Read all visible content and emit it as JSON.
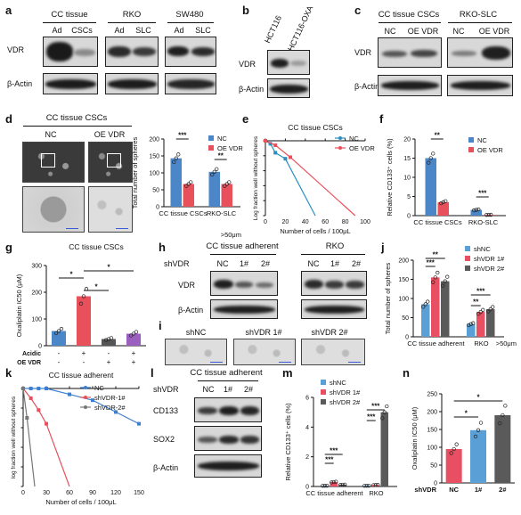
{
  "colors": {
    "blue": "#4a86c8",
    "red": "#e8505b",
    "grey": "#555555",
    "purple": "#9b5fc0",
    "lightblue": "#5aa0d6",
    "pink": "#e94f62",
    "darkgrey": "#5a5a5a"
  },
  "panel_labels": {
    "a": "a",
    "b": "b",
    "c": "c",
    "d": "d",
    "e": "e",
    "f": "f",
    "g": "g",
    "h": "h",
    "i": "i",
    "j": "j",
    "k": "k",
    "l": "l",
    "m": "m",
    "n": "n"
  },
  "blots": {
    "a": {
      "groups": [
        "CC tissue",
        "RKO",
        "SW480"
      ],
      "lanes": [
        "Ad",
        "CSCs",
        "Ad",
        "SLC",
        "Ad",
        "SLC"
      ],
      "rows": [
        "VDR",
        "β-Actin"
      ]
    },
    "b": {
      "lanes": [
        "HCT116",
        "HCT116-OXA"
      ],
      "rows": [
        "VDR",
        "β-Actin"
      ]
    },
    "c": {
      "groups": [
        "CC tissue CSCs",
        "RKO-SLC"
      ],
      "lanes": [
        "NC",
        "OE VDR",
        "NC",
        "OE VDR"
      ],
      "rows": [
        "VDR",
        "β-Actin"
      ]
    },
    "h": {
      "title": "CC tissue adherent",
      "title2": "RKO",
      "row_label": "shVDR",
      "lanes": [
        "NC",
        "1#",
        "2#",
        "NC",
        "1#",
        "2#"
      ],
      "rows": [
        "VDR",
        "β-Actin"
      ]
    },
    "l": {
      "title": "CC tissue adherent",
      "row_label": "shVDR",
      "lanes": [
        "NC",
        "1#",
        "2#"
      ],
      "rows": [
        "CD133",
        "SOX2",
        "β-Actin"
      ]
    }
  },
  "micro": {
    "d": {
      "title": "CC tissue CSCs",
      "cols": [
        "NC",
        "OE VDR"
      ]
    },
    "i": {
      "cols": [
        "shNC",
        "shVDR 1#",
        "shVDR 2#"
      ]
    }
  },
  "size_note": ">50μm",
  "chart_data": [
    {
      "panel": "d",
      "type": "bar",
      "ylabel": "Total number of spheres",
      "ylim": [
        0,
        200
      ],
      "yticks": [
        0,
        50,
        100,
        150,
        200
      ],
      "categories": [
        "CC tissue CSCs",
        "RKO-SLC"
      ],
      "series": [
        {
          "name": "NC",
          "values": [
            143,
            103
          ]
        },
        {
          "name": "OE VDR",
          "values": [
            67,
            67
          ]
        }
      ],
      "significance": [
        "***",
        "**"
      ],
      "legend": "top-right"
    },
    {
      "panel": "e",
      "type": "line",
      "title": "CC tissue CSCs",
      "ylabel": "Log fraction well without spheres",
      "xlabel": "Number of cells / 100μL",
      "xlim": [
        0,
        100
      ],
      "xticks": [
        0,
        20,
        40,
        60,
        80,
        100
      ],
      "ylim": [
        -5,
        0
      ],
      "yticks": [
        0,
        -1,
        -2,
        -3,
        -4,
        -5
      ],
      "series": [
        {
          "name": "NC",
          "x": [
            0,
            5,
            10,
            20,
            50
          ],
          "y": [
            0,
            -0.2,
            -0.8,
            -1.2,
            -5
          ]
        },
        {
          "name": "OE VDR",
          "x": [
            0,
            10,
            25,
            90
          ],
          "y": [
            0,
            -0.3,
            -1.1,
            -5
          ]
        }
      ],
      "legend": "top-right"
    },
    {
      "panel": "f",
      "type": "bar",
      "ylabel": "Relative CD133⁺ cells (%)",
      "ylim": [
        0,
        20
      ],
      "yticks": [
        0,
        5,
        10,
        15,
        20
      ],
      "categories": [
        "CC tissue CSCs",
        "RKO-SLC"
      ],
      "series": [
        {
          "name": "NC",
          "values": [
            15,
            1.5
          ]
        },
        {
          "name": "OE VDR",
          "values": [
            3.5,
            0.2
          ]
        }
      ],
      "significance": [
        "**",
        "***"
      ],
      "legend": "top-right"
    },
    {
      "panel": "g",
      "type": "bar",
      "title": "CC tissue CSCs",
      "ylabel": "Oxaliplatin IC50 (μM)",
      "ylim": [
        0,
        300
      ],
      "yticks": [
        0,
        100,
        200,
        300
      ],
      "categories": [
        "1",
        "2",
        "3",
        "4"
      ],
      "values": [
        55,
        185,
        25,
        45
      ],
      "conditions": [
        {
          "name": "Acidic",
          "values": [
            "-",
            "+",
            "-",
            "+"
          ]
        },
        {
          "name": "OE VDR",
          "values": [
            "-",
            "-",
            "+",
            "+"
          ]
        }
      ],
      "significance": [
        "*",
        "*",
        "*"
      ]
    },
    {
      "panel": "j",
      "type": "bar",
      "ylabel": "Total number of spheres",
      "ylim": [
        0,
        200
      ],
      "yticks": [
        0,
        50,
        100,
        150,
        200
      ],
      "categories": [
        "CC tissue adherent",
        "RKO"
      ],
      "series": [
        {
          "name": "shNC",
          "values": [
            85,
            33
          ]
        },
        {
          "name": "shVDR 1#",
          "values": [
            155,
            65
          ]
        },
        {
          "name": "shVDR 2#",
          "values": [
            145,
            72
          ]
        }
      ],
      "significance": [
        "***",
        "**",
        "***",
        "**"
      ],
      "legend": "top-right"
    },
    {
      "panel": "k",
      "type": "line",
      "title": "CC tissue adherent",
      "ylabel": "log fraction well without spheres",
      "xlabel": "Number of cells / 100μL",
      "xlim": [
        0,
        150
      ],
      "xticks": [
        0,
        30,
        60,
        90,
        120,
        150
      ],
      "ylim": [
        -5,
        0
      ],
      "yticks": [
        0,
        -1,
        -2,
        -3,
        -4,
        -5
      ],
      "series": [
        {
          "name": "NC",
          "x": [
            0,
            10,
            20,
            30,
            60,
            90,
            120,
            150
          ],
          "y": [
            0,
            0,
            0,
            0,
            -0.3,
            -0.6,
            -1.2,
            -1.8
          ]
        },
        {
          "name": "shVDR-1#",
          "x": [
            0,
            10,
            20,
            30,
            60
          ],
          "y": [
            0,
            -0.5,
            -1.1,
            -1.8,
            -5
          ]
        },
        {
          "name": "shVDR-2#",
          "x": [
            0,
            5,
            15
          ],
          "y": [
            0,
            -1.5,
            -5
          ]
        }
      ],
      "legend": "top-right"
    },
    {
      "panel": "m",
      "type": "bar",
      "ylabel": "Relative CD133⁺ cells (%)",
      "ylim": [
        0,
        6
      ],
      "yticks": [
        0,
        2,
        4,
        6
      ],
      "categories": [
        "CC tissue adherent",
        "RKO"
      ],
      "series": [
        {
          "name": "shNC",
          "values": [
            0.05,
            0.05
          ]
        },
        {
          "name": "shVDR 1#",
          "values": [
            0.3,
            0.1
          ]
        },
        {
          "name": "shVDR 2#",
          "values": [
            0.12,
            5
          ]
        }
      ],
      "significance": [
        "***",
        "***",
        "***",
        "***"
      ],
      "legend": "top-left"
    },
    {
      "panel": "n",
      "type": "bar",
      "ylabel": "Oxaliplatin IC50 (μM)",
      "xlabel": "shVDR",
      "ylim": [
        0,
        250
      ],
      "yticks": [
        0,
        50,
        100,
        150,
        200,
        250
      ],
      "categories": [
        "NC",
        "1#",
        "2#"
      ],
      "values": [
        95,
        148,
        190
      ],
      "significance": [
        "*",
        "*"
      ]
    }
  ]
}
